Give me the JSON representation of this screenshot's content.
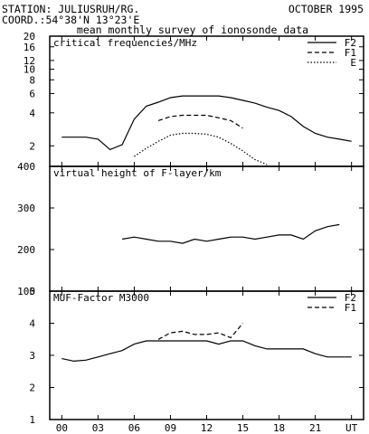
{
  "header": {
    "station": "STATION: JULIUSRUH/RG.",
    "date": "OCTOBER 1995",
    "coord": "COORD.:54°38'N 13°23'E",
    "subtitle": "mean monthly survey of ionosonde data"
  },
  "colors": {
    "line": "#000000",
    "background": "#ffffff"
  },
  "x_axis": {
    "range": [
      -1,
      25
    ],
    "tick_values": [
      0,
      3,
      6,
      9,
      12,
      15,
      18,
      21,
      24
    ],
    "tick_labels": [
      "00",
      "03",
      "06",
      "09",
      "12",
      "15",
      "18",
      "21",
      "UT"
    ]
  },
  "chart_data": [
    {
      "type": "line",
      "title": "critical frequencies/MHz",
      "scale": "log",
      "ylim": [
        1.3,
        20
      ],
      "yticks": [
        2,
        4,
        6,
        8,
        10,
        12,
        16,
        20
      ],
      "legend": "top-right",
      "series": [
        {
          "name": "F2",
          "style": "solid",
          "x": [
            0,
            1,
            2,
            3,
            4,
            5,
            6,
            7,
            8,
            9,
            10,
            11,
            12,
            13,
            14,
            15,
            16,
            17,
            18,
            19,
            20,
            21,
            22,
            23,
            24
          ],
          "y": [
            2.4,
            2.4,
            2.4,
            2.3,
            1.85,
            2.05,
            3.5,
            4.6,
            5.0,
            5.5,
            5.7,
            5.7,
            5.7,
            5.7,
            5.5,
            5.2,
            4.9,
            4.5,
            4.2,
            3.7,
            3.0,
            2.6,
            2.4,
            2.3,
            2.2
          ]
        },
        {
          "name": "F1",
          "style": "dashed",
          "x": [
            8,
            9,
            10,
            11,
            12,
            13,
            14,
            15
          ],
          "y": [
            3.4,
            3.7,
            3.8,
            3.8,
            3.8,
            3.6,
            3.4,
            2.9
          ]
        },
        {
          "name": "E",
          "style": "dotted",
          "x": [
            6,
            7,
            8,
            9,
            10,
            11,
            12,
            13,
            14,
            15,
            16,
            17
          ],
          "y": [
            1.6,
            1.9,
            2.2,
            2.5,
            2.6,
            2.6,
            2.55,
            2.4,
            2.1,
            1.8,
            1.5,
            1.35
          ]
        }
      ]
    },
    {
      "type": "line",
      "title": "virtual height of F-layer/km",
      "ylim": [
        100,
        400
      ],
      "yticks": [
        100,
        200,
        300,
        400
      ],
      "series": [
        {
          "style": "solid",
          "x": [
            5,
            6,
            7,
            8,
            9,
            10,
            11,
            12,
            13,
            14,
            15,
            16,
            17,
            18,
            19,
            20,
            21,
            22,
            23
          ],
          "y": [
            225,
            230,
            225,
            220,
            220,
            215,
            225,
            220,
            225,
            230,
            230,
            225,
            230,
            235,
            235,
            225,
            245,
            255,
            260
          ]
        }
      ]
    },
    {
      "type": "line",
      "title": "MUF-Factor M3000",
      "ylim": [
        1,
        5
      ],
      "yticks": [
        1,
        2,
        3,
        4,
        5
      ],
      "legend": "top-right",
      "series": [
        {
          "name": "F2",
          "style": "solid",
          "x": [
            0,
            1,
            2,
            3,
            4,
            5,
            6,
            7,
            8,
            9,
            10,
            11,
            12,
            13,
            14,
            15,
            16,
            17,
            18,
            19,
            20,
            21,
            22,
            23,
            24
          ],
          "y": [
            2.9,
            2.82,
            2.85,
            2.95,
            3.05,
            3.15,
            3.35,
            3.45,
            3.45,
            3.45,
            3.45,
            3.45,
            3.45,
            3.35,
            3.45,
            3.45,
            3.3,
            3.2,
            3.2,
            3.2,
            3.2,
            3.05,
            2.95,
            2.95,
            2.95
          ]
        },
        {
          "name": "F1",
          "style": "dashed",
          "x": [
            8,
            9,
            10,
            11,
            12,
            13,
            14,
            15
          ],
          "y": [
            3.5,
            3.7,
            3.75,
            3.65,
            3.65,
            3.7,
            3.55,
            4.0
          ]
        }
      ]
    }
  ]
}
